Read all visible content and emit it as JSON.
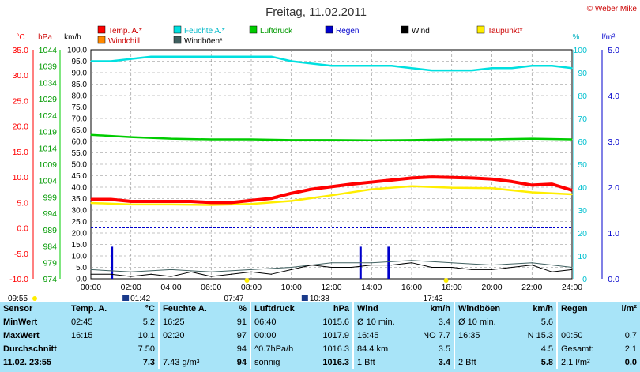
{
  "title": "Freitag, 11.02.2011",
  "credit": "© Weber Mike",
  "axes": {
    "c_label": "°C",
    "hpa_label": "hPa",
    "kmh_label": "km/h",
    "pct_label": "%",
    "rain_label": "l/m²",
    "c_ticks": [
      "35.0",
      "30.0",
      "25.0",
      "20.0",
      "15.0",
      "10.0",
      "5.0",
      "0.0",
      "-5.0",
      "-10.0"
    ],
    "hpa_ticks": [
      "1044",
      "1039",
      "1034",
      "1029",
      "1024",
      "1019",
      "1014",
      "1009",
      "1004",
      "999",
      "994",
      "989",
      "984",
      "979",
      "974"
    ],
    "kmh_ticks": [
      "100.0",
      "95.0",
      "90.0",
      "85.0",
      "80.0",
      "75.0",
      "70.0",
      "65.0",
      "60.0",
      "55.0",
      "50.0",
      "45.0",
      "40.0",
      "35.0",
      "30.0",
      "25.0",
      "20.0",
      "15.0",
      "10.0",
      "5.0",
      "0.0"
    ],
    "pct_ticks": [
      "100",
      "90",
      "80",
      "70",
      "60",
      "50",
      "40",
      "30",
      "20",
      "10",
      "0"
    ],
    "rain_ticks": [
      "5.0",
      "4.0",
      "3.0",
      "2.0",
      "1.0",
      "0.0"
    ],
    "x_ticks": [
      "00:00",
      "02:00",
      "04:00",
      "06:00",
      "08:00",
      "10:00",
      "12:00",
      "14:00",
      "16:00",
      "18:00",
      "20:00",
      "22:00",
      "24:00"
    ]
  },
  "legend": [
    {
      "label": "Temp. A.*",
      "color": "#ff0000"
    },
    {
      "label": "Feuchte A.*",
      "color": "#00e0e0"
    },
    {
      "label": "Luftdruck",
      "color": "#00cc00"
    },
    {
      "label": "Regen",
      "color": "#0000cc"
    },
    {
      "label": "Wind",
      "color": "#000000"
    },
    {
      "label": "Taupunkt*",
      "color": "#ffee00"
    },
    {
      "label": "Windchill",
      "color": "#ff8800"
    },
    {
      "label": "Windböen*",
      "color": "#406060"
    }
  ],
  "sun": {
    "sunrise": "07:47",
    "sunset": "17:43",
    "start_time": "09:55",
    "moonrise": "01:42",
    "moonset": "10:38"
  },
  "chart_data": {
    "type": "line",
    "x_range": [
      0,
      24
    ],
    "x_label_times": [
      "00:00",
      "02:00",
      "04:00",
      "06:00",
      "08:00",
      "10:00",
      "12:00",
      "14:00",
      "16:00",
      "18:00",
      "20:00",
      "22:00",
      "24:00"
    ],
    "grid": true,
    "series": [
      {
        "name": "Temp. A.*",
        "unit": "°C",
        "color": "#ff0000",
        "x": [
          0,
          1,
          2,
          3,
          4,
          5,
          6,
          7,
          8,
          9,
          10,
          11,
          12,
          13,
          14,
          15,
          16,
          17,
          18,
          19,
          20,
          21,
          22,
          23,
          24
        ],
        "y": [
          5.6,
          5.6,
          5.2,
          5.2,
          5.2,
          5.2,
          5.0,
          5.0,
          5.4,
          5.8,
          6.8,
          7.6,
          8.1,
          8.6,
          9.0,
          9.4,
          9.8,
          10.0,
          9.9,
          9.8,
          9.6,
          9.1,
          8.4,
          8.6,
          7.4
        ]
      },
      {
        "name": "Taupunkt*",
        "unit": "°C",
        "color": "#ffee00",
        "x": [
          0,
          2,
          4,
          6,
          8,
          10,
          12,
          14,
          16,
          18,
          20,
          22,
          24
        ],
        "y": [
          4.9,
          4.6,
          4.6,
          4.5,
          4.7,
          5.3,
          6.4,
          7.6,
          8.2,
          7.9,
          7.8,
          7.0,
          6.6
        ]
      },
      {
        "name": "Feuchte A.*",
        "unit": "%",
        "color": "#00e0e0",
        "x": [
          0,
          1,
          2,
          3,
          4,
          5,
          6,
          7,
          8,
          9,
          10,
          11,
          12,
          13,
          14,
          15,
          16,
          17,
          18,
          19,
          20,
          21,
          22,
          23,
          24
        ],
        "y": [
          95,
          95,
          96,
          97,
          97,
          97,
          97,
          97,
          97,
          97,
          95,
          94,
          93,
          93,
          93,
          93,
          92,
          91,
          91,
          91,
          92,
          92,
          93,
          93,
          92
        ]
      },
      {
        "name": "Luftdruck",
        "unit": "hPa",
        "color": "#00cc00",
        "x": [
          0,
          2,
          4,
          6,
          8,
          10,
          12,
          14,
          16,
          18,
          20,
          22,
          24
        ],
        "y": [
          1018.0,
          1017.3,
          1016.8,
          1016.6,
          1016.6,
          1016.4,
          1016.4,
          1016.3,
          1016.4,
          1016.6,
          1016.6,
          1016.8,
          1016.6
        ]
      },
      {
        "name": "Wind",
        "unit": "km/h",
        "color": "#000000",
        "x": [
          0,
          1,
          2,
          3,
          4,
          5,
          6,
          7,
          8,
          9,
          10,
          11,
          12,
          13,
          14,
          15,
          16,
          17,
          18,
          19,
          20,
          21,
          22,
          23,
          24
        ],
        "y": [
          2,
          2,
          1,
          2,
          1,
          3,
          1,
          2,
          3,
          2,
          4,
          6,
          5,
          5,
          6,
          6,
          7,
          5,
          5,
          4,
          4,
          5,
          6,
          3,
          4
        ]
      },
      {
        "name": "Windböen*",
        "unit": "km/h",
        "color": "#406060",
        "x": [
          0,
          2,
          4,
          6,
          8,
          10,
          12,
          14,
          16,
          18,
          20,
          22,
          24
        ],
        "y": [
          4,
          3,
          4,
          3,
          4,
          5,
          7,
          7,
          8,
          7,
          6,
          7,
          5
        ]
      },
      {
        "name": "Regen",
        "unit": "l/m²",
        "color": "#0000cc",
        "type": "bar",
        "x": [
          1.05,
          13.45,
          14.85
        ],
        "y": [
          0.7,
          0.7,
          0.7
        ]
      }
    ],
    "axes_ranges": {
      "temp_c": [
        -10,
        35
      ],
      "pressure_hpa": [
        974,
        1044
      ],
      "wind_kmh": [
        0,
        100
      ],
      "humidity_pct": [
        0,
        100
      ],
      "rain_lm2": [
        0,
        5
      ]
    },
    "reference_line_c": 0.0
  },
  "stats": {
    "headers": {
      "sensor": "Sensor",
      "temp": "Temp. A.",
      "temp_unit": "°C",
      "hum": "Feuchte A.",
      "hum_unit": "%",
      "press": "Luftdruck",
      "press_unit": "hPa",
      "wind": "Wind",
      "wind_unit": "km/h",
      "gust": "Windböen",
      "gust_unit": "km/h",
      "rain": "Regen",
      "rain_unit": "l/m²"
    },
    "rows": [
      {
        "label": "MinWert",
        "temp_t": "02:45",
        "temp_v": "5.2",
        "hum_t": "16:25",
        "hum_v": "91",
        "press_t": "06:40",
        "press_v": "1015.6",
        "wind_t": "Ø 10 min.",
        "wind_v": "3.4",
        "gust_t": "Ø 10 min.",
        "gust_v": "5.6",
        "rain_t": "",
        "rain_v": ""
      },
      {
        "label": "MaxWert",
        "temp_t": "16:15",
        "temp_v": "10.1",
        "hum_t": "02:20",
        "hum_v": "97",
        "press_t": "00:00",
        "press_v": "1017.9",
        "wind_t": "16:45",
        "wind_d": "NO",
        "wind_v": "7.7",
        "gust_t": "16:35",
        "gust_d": "N",
        "gust_v": "15.3",
        "rain_t": "00:50",
        "rain_v": "0.7"
      },
      {
        "label": "Durchschnitt",
        "temp_t": "",
        "temp_v": "7.50",
        "hum_t": "",
        "hum_v": "94",
        "press_t": "^0.7hPa/h",
        "press_v": "1016.3",
        "wind_t": "84.4 km",
        "wind_v": "3.5",
        "gust_t": "",
        "gust_v": "4.5",
        "rain_t": "Gesamt:",
        "rain_v": "2.1"
      },
      {
        "label": "11.02. 23:55",
        "temp_t": "",
        "temp_v": "7.3",
        "hum_t": "7.43 g/m³",
        "hum_v": "94",
        "press_t": "sonnig",
        "press_v": "1016.3",
        "wind_t": "1 Bft",
        "wind_v": "3.4",
        "gust_t": "2 Bft",
        "gust_v": "5.8",
        "rain_t": "2.1 l/m²",
        "rain_v": "0.0"
      }
    ]
  }
}
